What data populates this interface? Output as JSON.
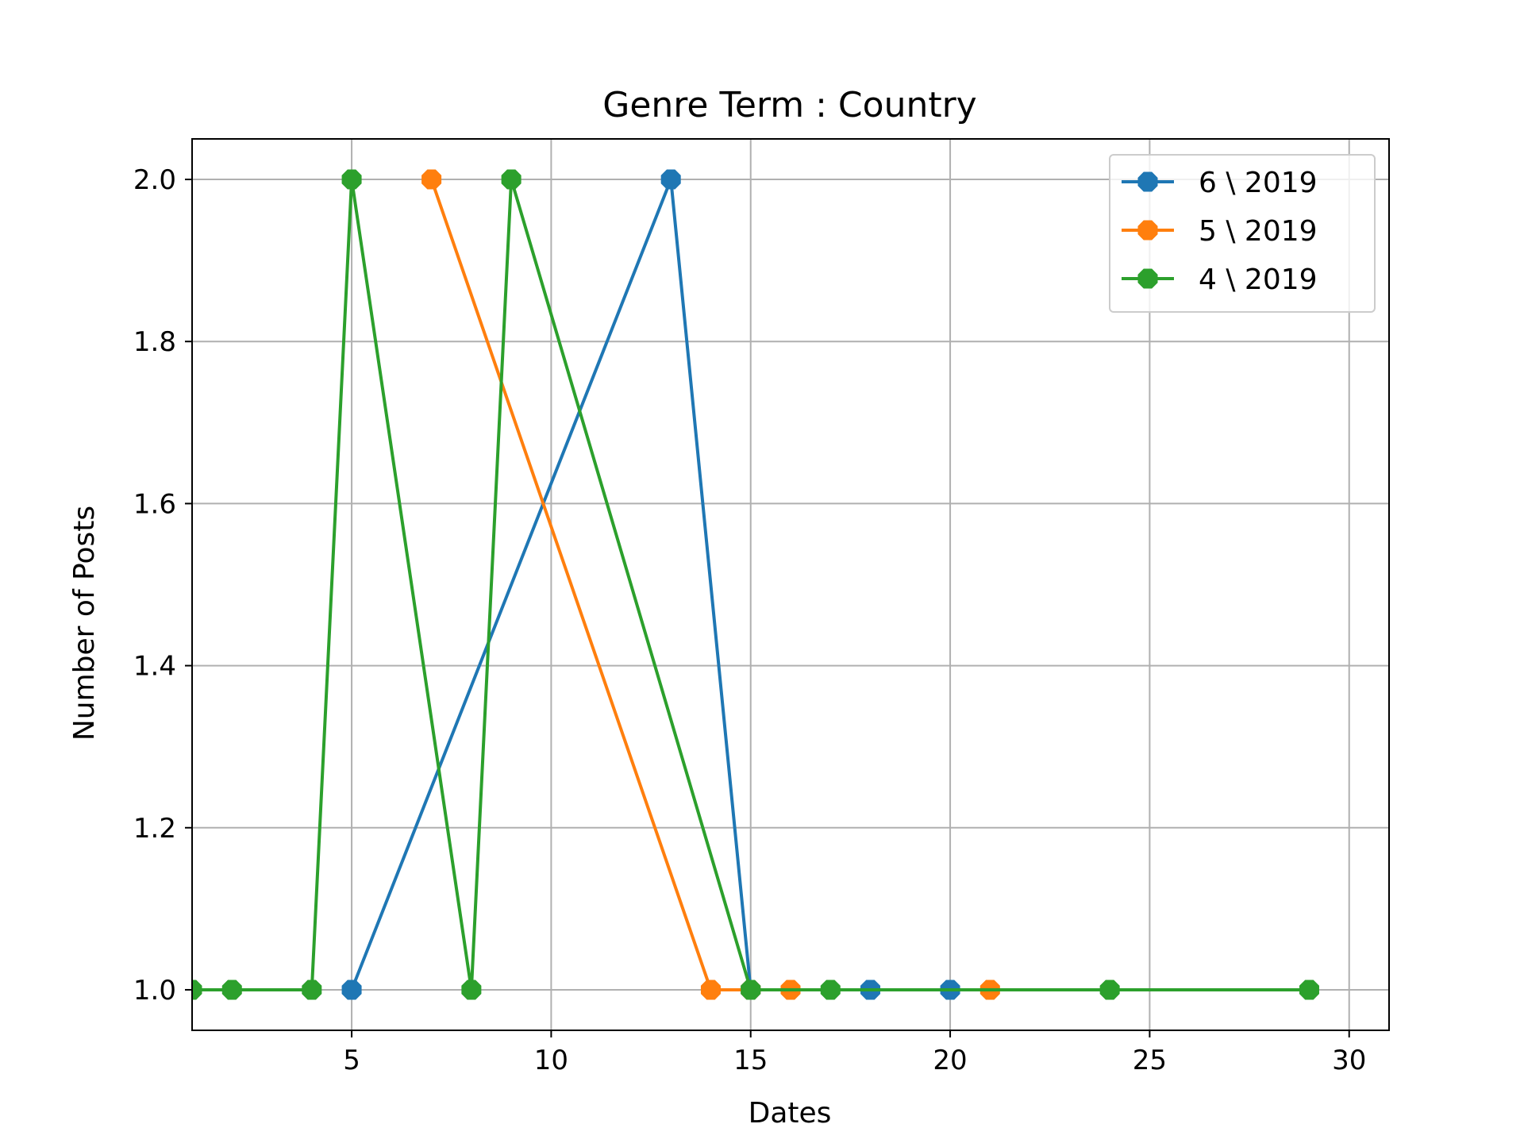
{
  "chart_data": {
    "type": "line",
    "title": "Genre Term : Country",
    "xlabel": "Dates",
    "ylabel": "Number of Posts",
    "xlim": [
      1,
      31
    ],
    "ylim": [
      0.95,
      2.05
    ],
    "xticks": [
      5,
      10,
      15,
      20,
      25,
      30
    ],
    "xtick_labels": [
      "5",
      "10",
      "15",
      "20",
      "25",
      "30"
    ],
    "yticks": [
      1.0,
      1.2,
      1.4,
      1.6,
      1.8,
      2.0
    ],
    "ytick_labels": [
      "1.0",
      "1.2",
      "1.4",
      "1.6",
      "1.8",
      "2.0"
    ],
    "grid": true,
    "legend_position": "top-right",
    "series": [
      {
        "name": "6 \\ 2019",
        "color": "#1f77b4",
        "x": [
          5,
          13,
          15,
          18,
          20
        ],
        "y": [
          1,
          2,
          1,
          1,
          1
        ]
      },
      {
        "name": "5 \\ 2019",
        "color": "#ff7f0e",
        "x": [
          7,
          14,
          15,
          16,
          21
        ],
        "y": [
          2,
          1,
          1,
          1,
          1
        ]
      },
      {
        "name": "4 \\ 2019",
        "color": "#2ca02c",
        "x": [
          1,
          2,
          4,
          5,
          8,
          9,
          15,
          17,
          24,
          29
        ],
        "y": [
          1,
          1,
          1,
          2,
          1,
          2,
          1,
          1,
          1,
          1
        ]
      }
    ]
  }
}
